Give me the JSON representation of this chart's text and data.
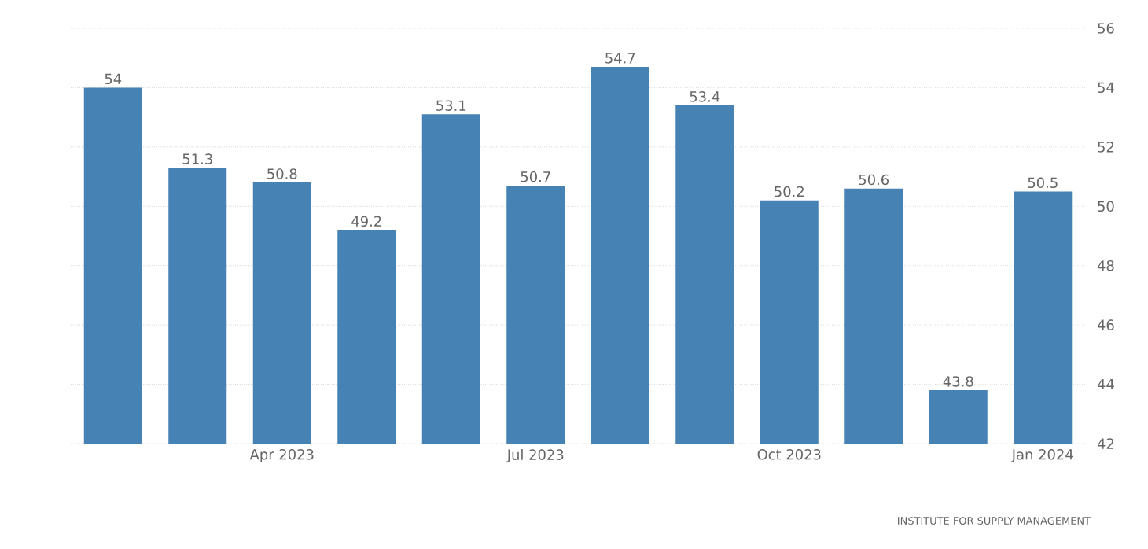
{
  "chart_data": {
    "type": "bar",
    "categories": [
      null,
      null,
      "Apr 2023",
      null,
      null,
      "Jul 2023",
      null,
      null,
      "Oct 2023",
      null,
      null,
      "Jan 2024"
    ],
    "values": [
      54,
      51.3,
      50.8,
      49.2,
      53.1,
      50.7,
      54.7,
      53.4,
      50.2,
      50.6,
      43.8,
      50.5
    ],
    "color": "#4682b4",
    "ylim": [
      42,
      56
    ],
    "yticks": [
      42,
      44,
      46,
      48,
      50,
      52,
      54,
      56
    ],
    "grid": "y",
    "data_labels": true,
    "annotations": [
      "INSTITUTE FOR SUPPLY MANAGEMENT"
    ]
  }
}
